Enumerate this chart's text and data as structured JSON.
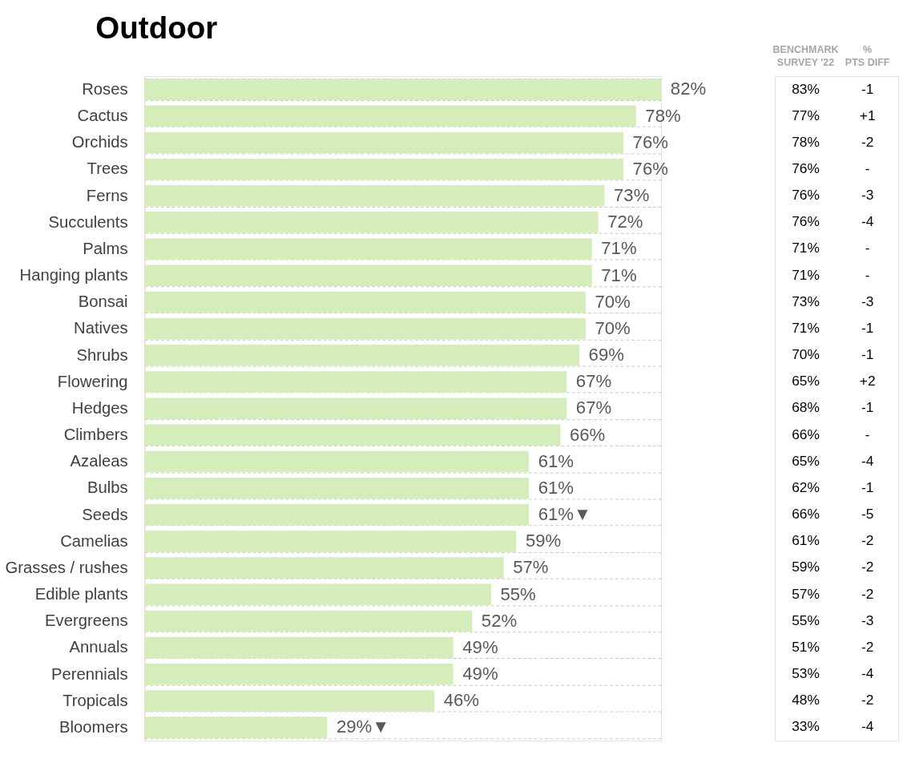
{
  "chart_data": [
    {
      "type": "bar",
      "orientation": "horizontal",
      "title": "Outdoor",
      "color": "#d5ecbb",
      "grid": true,
      "categories": [
        "Roses",
        "Cactus",
        "Orchids",
        "Trees",
        "Ferns",
        "Succulents",
        "Palms",
        "Hanging plants",
        "Bonsai",
        "Natives",
        "Shrubs",
        "Flowering",
        "Hedges",
        "Climbers",
        "Azaleas",
        "Bulbs",
        "Seeds",
        "Camelias",
        "Grasses / rushes",
        "Edible plants",
        "Evergreens",
        "Annuals",
        "Perennials",
        "Tropicals",
        "Bloomers"
      ],
      "values": [
        82,
        78,
        76,
        76,
        73,
        72,
        71,
        71,
        70,
        70,
        69,
        67,
        67,
        66,
        61,
        61,
        61,
        59,
        57,
        55,
        52,
        49,
        49,
        46,
        29
      ],
      "value_labels": [
        "82%",
        "78%",
        "76%",
        "76%",
        "73%",
        "72%",
        "71%",
        "71%",
        "70%",
        "70%",
        "69%",
        "67%",
        "67%",
        "66%",
        "61%",
        "61%",
        "61%▼",
        "59%",
        "57%",
        "55%",
        "52%",
        "49%",
        "49%",
        "46%",
        "29%▼"
      ]
    },
    {
      "type": "other",
      "categories": [
        "BENCHMARK SURVEY '22",
        "% PTS DIFF"
      ],
      "annotations": [
        "83%",
        "-1",
        "77%",
        "+1",
        "78%",
        "-2",
        "76%",
        "-",
        "76%",
        "-3",
        "76%",
        "-4",
        "71%",
        "-",
        "71%",
        "-",
        "73%",
        "-3",
        "71%",
        "-1",
        "70%",
        "-1",
        "65%",
        "+2",
        "68%",
        "-1",
        "66%",
        "-",
        "65%",
        "-4",
        "62%",
        "-1",
        "66%",
        "-5",
        "61%",
        "-2",
        "59%",
        "-2",
        "57%",
        "-2",
        "55%",
        "-3",
        "51%",
        "-2",
        "53%",
        "-4",
        "48%",
        "-2",
        "33%",
        "-4"
      ]
    }
  ]
}
